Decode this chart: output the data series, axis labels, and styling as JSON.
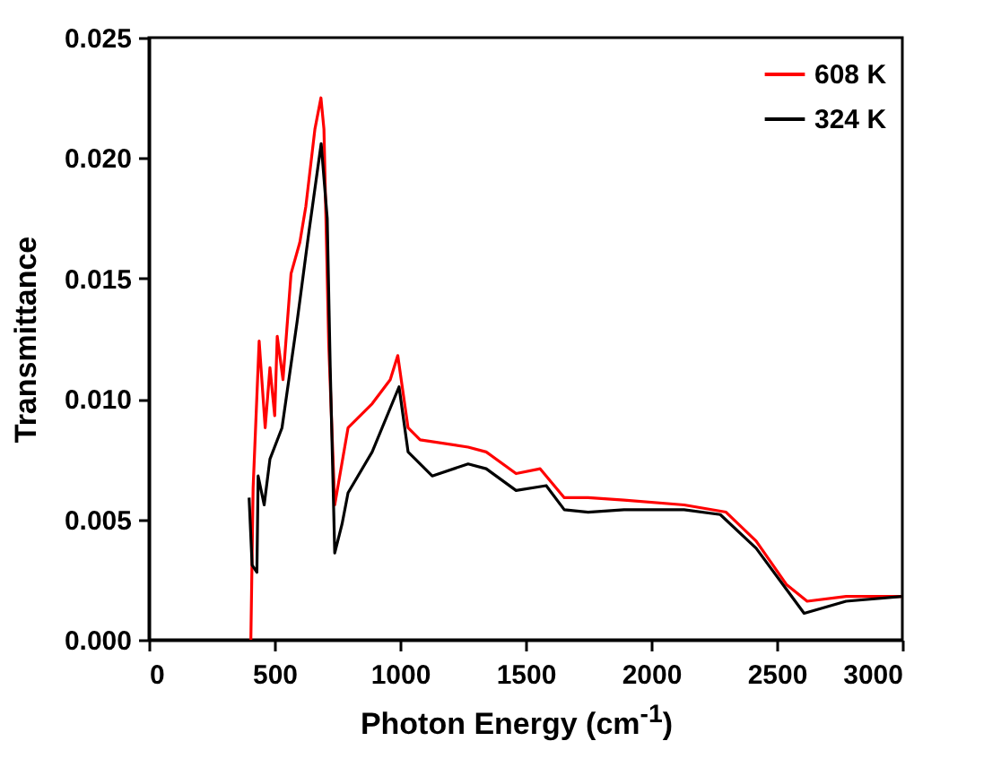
{
  "chart_data": {
    "type": "line",
    "xlabel": "Photon Energy (cm$^{-1}$)",
    "ylabel": "Transmittance",
    "xlim": [
      0,
      3000
    ],
    "xticks": [
      0,
      500,
      1000,
      1500,
      2000,
      2500,
      3000
    ],
    "ylim": [
      0,
      0.025
    ],
    "yticks": [
      {
        "value": 0,
        "label": "0.000"
      },
      {
        "value": 0.005,
        "label": "0.005"
      },
      {
        "value": 0.01,
        "label": "0.010"
      },
      {
        "value": 0.015,
        "label": "0.015"
      },
      {
        "value": 0.02,
        "label": "0.020"
      },
      {
        "value": 0.025,
        "label": "0.025"
      }
    ],
    "legend": "top right",
    "grid": false,
    "series": [
      {
        "name": "608 K",
        "color": "#ff0000",
        "x": [
          406,
          415,
          439,
          463,
          482,
          501,
          511,
          534,
          566,
          601,
          625,
          661,
          685,
          697,
          716,
          740,
          793,
          889,
          961,
          991,
          1032,
          1080,
          1271,
          1343,
          1462,
          1558,
          1654,
          1749,
          1892,
          2131,
          2298,
          2418,
          2538,
          2621,
          2776,
          3000
        ],
        "values": [
          0,
          0.0063,
          0.0124,
          0.0088,
          0.0113,
          0.0093,
          0.0126,
          0.0108,
          0.0152,
          0.0165,
          0.018,
          0.0212,
          0.0225,
          0.0212,
          0.0123,
          0.0056,
          0.0088,
          0.0098,
          0.0108,
          0.0118,
          0.0088,
          0.0083,
          0.008,
          0.0078,
          0.0069,
          0.0071,
          0.0059,
          0.0059,
          0.0058,
          0.0056,
          0.0053,
          0.0041,
          0.0023,
          0.0016,
          0.0018,
          0.0018
        ]
      },
      {
        "name": "324 K",
        "color": "#000000",
        "x": [
          399,
          411,
          430,
          435,
          459,
          482,
          530,
          590,
          638,
          686,
          710,
          722,
          740,
          769,
          793,
          889,
          996,
          1032,
          1128,
          1271,
          1343,
          1462,
          1582,
          1654,
          1749,
          1892,
          2131,
          2275,
          2418,
          2538,
          2609,
          2776,
          3000
        ],
        "values": [
          0.0059,
          0.0031,
          0.0028,
          0.0068,
          0.0056,
          0.0075,
          0.0088,
          0.0132,
          0.017,
          0.0206,
          0.0175,
          0.0113,
          0.0036,
          0.0048,
          0.0061,
          0.0078,
          0.0105,
          0.0078,
          0.0068,
          0.0073,
          0.0071,
          0.0062,
          0.0064,
          0.0054,
          0.0053,
          0.0054,
          0.0054,
          0.0052,
          0.0038,
          0.0021,
          0.0011,
          0.0016,
          0.0018
        ]
      }
    ]
  }
}
